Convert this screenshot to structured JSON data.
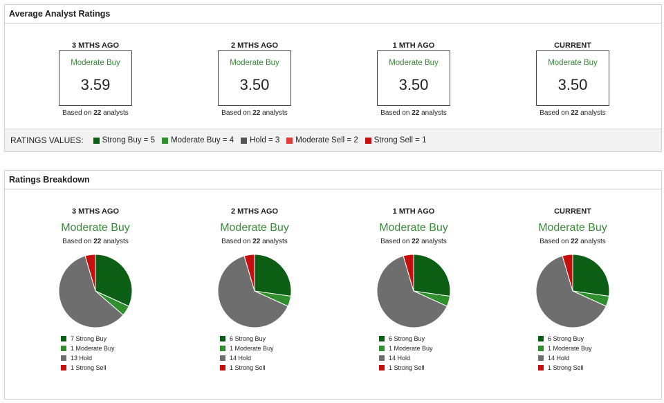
{
  "avg_panel": {
    "title": "Average Analyst Ratings",
    "columns": [
      {
        "head": "3 MTHS AGO",
        "rating": "Moderate Buy",
        "value": "3.59",
        "based_prefix": "Based on ",
        "analysts": "22",
        "based_suffix": " analysts"
      },
      {
        "head": "2 MTHS AGO",
        "rating": "Moderate Buy",
        "value": "3.50",
        "based_prefix": "Based on ",
        "analysts": "22",
        "based_suffix": " analysts"
      },
      {
        "head": "1 MTH AGO",
        "rating": "Moderate Buy",
        "value": "3.50",
        "based_prefix": "Based on ",
        "analysts": "22",
        "based_suffix": " analysts"
      },
      {
        "head": "CURRENT",
        "rating": "Moderate Buy",
        "value": "3.50",
        "based_prefix": "Based on ",
        "analysts": "22",
        "based_suffix": " analysts"
      }
    ],
    "legend_title": "RATINGS VALUES:",
    "legend": [
      {
        "label": "Strong Buy = 5",
        "color": "#0b5e14"
      },
      {
        "label": "Moderate Buy = 4",
        "color": "#2f8f2f"
      },
      {
        "label": "Hold = 3",
        "color": "#555555"
      },
      {
        "label": "Moderate Sell = 2",
        "color": "#e03c3c"
      },
      {
        "label": "Strong Sell = 1",
        "color": "#c40f0f"
      }
    ]
  },
  "brk_panel": {
    "title": "Ratings Breakdown",
    "columns": [
      {
        "head": "3 MTHS AGO",
        "rating": "Moderate Buy",
        "based_prefix": "Based on ",
        "analysts": "22",
        "based_suffix": " analysts"
      },
      {
        "head": "2 MTHS AGO",
        "rating": "Moderate Buy",
        "based_prefix": "Based on ",
        "analysts": "22",
        "based_suffix": " analysts"
      },
      {
        "head": "1 MTH AGO",
        "rating": "Moderate Buy",
        "based_prefix": "Based on ",
        "analysts": "22",
        "based_suffix": " analysts"
      },
      {
        "head": "CURRENT",
        "rating": "Moderate Buy",
        "based_prefix": "Based on ",
        "analysts": "22",
        "based_suffix": " analysts"
      }
    ]
  },
  "chart_data": [
    {
      "type": "pie",
      "title": "3 MTHS AGO",
      "categories": [
        "Strong Buy",
        "Moderate Buy",
        "Hold",
        "Strong Sell"
      ],
      "values": [
        7,
        1,
        13,
        1
      ],
      "legend": [
        "7 Strong Buy",
        "1 Moderate Buy",
        "13 Hold",
        "1 Strong Sell"
      ],
      "colors": [
        "#0b5e14",
        "#2f8f2f",
        "#6e6e6e",
        "#c40f0f"
      ]
    },
    {
      "type": "pie",
      "title": "2 MTHS AGO",
      "categories": [
        "Strong Buy",
        "Moderate Buy",
        "Hold",
        "Strong Sell"
      ],
      "values": [
        6,
        1,
        14,
        1
      ],
      "legend": [
        "6 Strong Buy",
        "1 Moderate Buy",
        "14 Hold",
        "1 Strong Sell"
      ],
      "colors": [
        "#0b5e14",
        "#2f8f2f",
        "#6e6e6e",
        "#c40f0f"
      ]
    },
    {
      "type": "pie",
      "title": "1 MTH AGO",
      "categories": [
        "Strong Buy",
        "Moderate Buy",
        "Hold",
        "Strong Sell"
      ],
      "values": [
        6,
        1,
        14,
        1
      ],
      "legend": [
        "6 Strong Buy",
        "1 Moderate Buy",
        "14 Hold",
        "1 Strong Sell"
      ],
      "colors": [
        "#0b5e14",
        "#2f8f2f",
        "#6e6e6e",
        "#c40f0f"
      ]
    },
    {
      "type": "pie",
      "title": "CURRENT",
      "categories": [
        "Strong Buy",
        "Moderate Buy",
        "Hold",
        "Strong Sell"
      ],
      "values": [
        6,
        1,
        14,
        1
      ],
      "legend": [
        "6 Strong Buy",
        "1 Moderate Buy",
        "14 Hold",
        "1 Strong Sell"
      ],
      "colors": [
        "#0b5e14",
        "#2f8f2f",
        "#6e6e6e",
        "#c40f0f"
      ]
    }
  ]
}
